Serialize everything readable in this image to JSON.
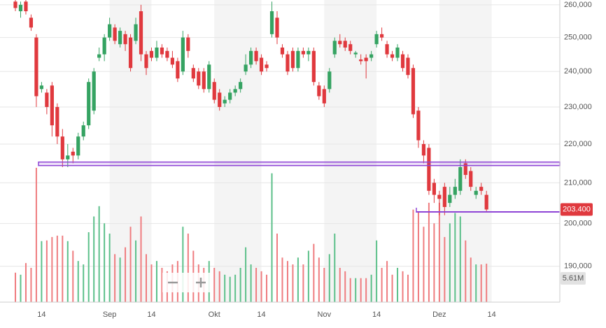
{
  "chart_data": {
    "type": "candlestick",
    "log_scale": true,
    "categories": [
      null,
      null,
      null,
      null,
      null,
      "14",
      null,
      null,
      null,
      null,
      null,
      null,
      null,
      null,
      null,
      null,
      null,
      null,
      "Sep",
      null,
      null,
      null,
      null,
      null,
      null,
      null,
      "14",
      null,
      null,
      null,
      null,
      null,
      null,
      null,
      null,
      null,
      null,
      null,
      "Okt",
      null,
      null,
      null,
      null,
      null,
      null,
      null,
      null,
      "14",
      null,
      null,
      null,
      null,
      null,
      null,
      null,
      null,
      null,
      null,
      null,
      "Nov",
      null,
      null,
      null,
      null,
      null,
      null,
      null,
      null,
      null,
      "14",
      null,
      null,
      null,
      null,
      null,
      null,
      null,
      null,
      null,
      null,
      null,
      "Dez",
      null,
      null,
      null,
      null,
      null,
      null,
      null,
      null,
      null,
      "14"
    ],
    "open": [
      261000,
      258000,
      261000,
      256000,
      250000,
      235000,
      234000,
      236000,
      230000,
      222000,
      216000,
      218000,
      217000,
      222000,
      225000,
      229000,
      244000,
      245000,
      250000,
      253000,
      248000,
      251000,
      250000,
      249000,
      258000,
      245000,
      246000,
      244000,
      247000,
      246000,
      244000,
      243000,
      240000,
      250000,
      241000,
      240000,
      240000,
      235000,
      237000,
      234000,
      231000,
      232000,
      234000,
      235000,
      240000,
      242000,
      246000,
      244000,
      242000,
      251000,
      256000,
      247000,
      245000,
      246000,
      241000,
      246000,
      245000,
      246000,
      236000,
      235000,
      235000,
      245000,
      249000,
      249000,
      248000,
      245000,
      243500,
      244000,
      244000,
      248000,
      251000,
      248000,
      245000,
      244000,
      245000,
      244000,
      241000,
      229000,
      220000,
      219000,
      210000,
      207000,
      209000,
      205000,
      207000,
      208000,
      215000,
      213000,
      207000,
      209000,
      207000,
      null
    ],
    "high": [
      262000,
      261000,
      262000,
      257000,
      251000,
      237000,
      235000,
      237000,
      231000,
      224000,
      220000,
      219000,
      223000,
      226000,
      238000,
      241000,
      247000,
      251000,
      256000,
      254000,
      253000,
      252000,
      251000,
      256000,
      260000,
      246000,
      247000,
      249000,
      248000,
      247000,
      246000,
      244000,
      252000,
      251000,
      242000,
      241000,
      241000,
      243000,
      238000,
      235000,
      233000,
      235000,
      236000,
      238000,
      245000,
      247000,
      247000,
      245000,
      243000,
      261000,
      258000,
      248000,
      246000,
      247000,
      247000,
      247000,
      247000,
      247000,
      237000,
      236000,
      241000,
      250000,
      251000,
      250000,
      249000,
      246000,
      245000,
      245000,
      246000,
      252000,
      253000,
      249000,
      246000,
      248000,
      246000,
      245000,
      242000,
      230000,
      221000,
      220000,
      211000,
      208000,
      210000,
      209000,
      211000,
      216000,
      216000,
      214000,
      209000,
      210000,
      208000,
      null
    ],
    "low": [
      258000,
      256000,
      257000,
      252000,
      230000,
      234000,
      228000,
      222000,
      220000,
      214000,
      214000,
      215000,
      216000,
      221000,
      224000,
      228000,
      243000,
      243000,
      249000,
      248000,
      247000,
      246000,
      240000,
      248000,
      243000,
      239000,
      243000,
      243000,
      244000,
      243000,
      241000,
      237000,
      239000,
      244000,
      237000,
      235000,
      234000,
      234000,
      231000,
      229000,
      230000,
      231000,
      233000,
      234000,
      239000,
      241000,
      242000,
      239000,
      240000,
      250000,
      248000,
      244000,
      239000,
      240000,
      240000,
      244000,
      243000,
      236000,
      232000,
      230000,
      234000,
      244000,
      247000,
      246000,
      245000,
      244000,
      242000,
      238000,
      243000,
      247000,
      249000,
      244000,
      243000,
      243000,
      240000,
      238000,
      227000,
      219000,
      215000,
      207000,
      205000,
      202000,
      202000,
      204000,
      206000,
      207000,
      211000,
      208000,
      206000,
      207000,
      203000,
      null
    ],
    "close": [
      259000,
      260000,
      258000,
      253000,
      233000,
      236000,
      230000,
      225000,
      222000,
      216000,
      217000,
      217000,
      222000,
      225000,
      237000,
      240000,
      245000,
      250000,
      254000,
      249000,
      252000,
      248000,
      241000,
      254000,
      245000,
      241000,
      244000,
      247000,
      245000,
      244000,
      242000,
      238000,
      250000,
      246000,
      238000,
      236000,
      235000,
      242000,
      232000,
      230000,
      232000,
      234000,
      235000,
      237000,
      242000,
      246000,
      243000,
      240000,
      241000,
      258000,
      250000,
      245000,
      240000,
      241000,
      246000,
      245000,
      246000,
      237000,
      233000,
      231000,
      240000,
      249000,
      248000,
      247000,
      246000,
      245500,
      243000,
      243000,
      245000,
      251000,
      250000,
      245000,
      244000,
      247000,
      241000,
      239000,
      228000,
      221000,
      217000,
      208000,
      207000,
      206000,
      204000,
      207000,
      209000,
      214000,
      212000,
      209000,
      208000,
      208000,
      203400,
      null
    ],
    "volume": [
      4.3,
      4.0,
      5.7,
      5.0,
      19.6,
      8.9,
      9.0,
      9.5,
      9.7,
      9.7,
      8.9,
      7.5,
      6.0,
      5.5,
      10.2,
      12.5,
      14.0,
      11.5,
      10.0,
      7.0,
      6.5,
      8.0,
      11.0,
      9.0,
      12.5,
      7.0,
      5.5,
      6.0,
      5.0,
      4.5,
      5.5,
      6.0,
      11.0,
      10.0,
      7.5,
      5.5,
      5.0,
      6.0,
      5.0,
      4.5,
      4.0,
      3.7,
      4.0,
      5.0,
      8.0,
      5.5,
      5.0,
      4.5,
      4.0,
      18.8,
      10.0,
      6.5,
      6.0,
      5.5,
      6.5,
      5.5,
      7.5,
      8.5,
      6.5,
      5.0,
      7.0,
      10.0,
      5.0,
      4.5,
      3.5,
      3.5,
      3.5,
      3.5,
      4.0,
      9.0,
      5.0,
      6.0,
      4.0,
      5.0,
      4.5,
      4.0,
      13.5,
      13.2,
      11.0,
      14.5,
      11.5,
      14.5,
      9.5,
      11.5,
      13.0,
      12.5,
      9.0,
      6.5,
      5.5,
      5.5,
      5.61,
      null
    ],
    "last_close_label": "203.400",
    "last_volume_label": "5.61M",
    "ylim": [
      182000,
      261500
    ],
    "yticks": [
      {
        "value": 260000,
        "label": "260,000"
      },
      {
        "value": 250000,
        "label": "250,000"
      },
      {
        "value": 240000,
        "label": "240,000"
      },
      {
        "value": 230000,
        "label": "230,000"
      },
      {
        "value": 220000,
        "label": "220,000"
      },
      {
        "value": 210000,
        "label": "210,000"
      },
      {
        "value": 200000,
        "label": "200,000"
      },
      {
        "value": 190000,
        "label": "190,000"
      }
    ],
    "vlim": [
      0,
      20
    ],
    "grid": true,
    "up_color": "#35a362",
    "down_color": "#e0393e",
    "up_volume_color": "#5cc08a",
    "down_volume_color": "#ef7c7f",
    "zones": [
      [
        214400,
        215300
      ]
    ],
    "levels": [
      202800
    ],
    "drawing_color": "#8e44d6"
  }
}
